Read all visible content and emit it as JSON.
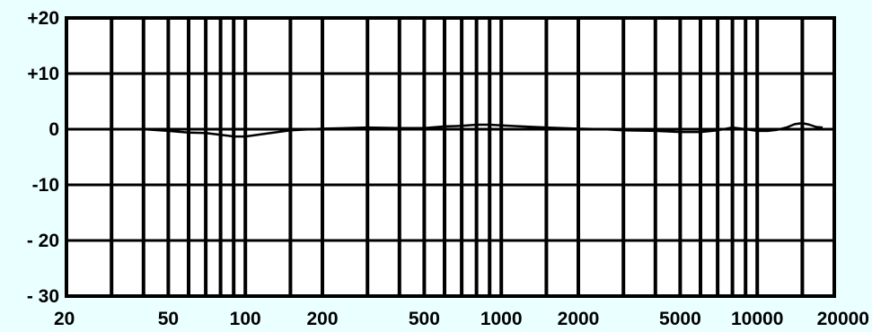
{
  "chart_data": {
    "type": "line",
    "title": "",
    "xlabel": "",
    "ylabel": "",
    "x_scale": "log",
    "xlim": [
      20,
      20000
    ],
    "ylim": [
      -30,
      20
    ],
    "grid": true,
    "colors": {
      "background": "#eaffff",
      "plot_area": "#ffffff",
      "grid": "#000000",
      "line": "#000000"
    },
    "y_ticks": [
      {
        "value": 20,
        "label": "+20"
      },
      {
        "value": 10,
        "label": "+10"
      },
      {
        "value": 0,
        "label": "0"
      },
      {
        "value": -10,
        "label": "-10"
      },
      {
        "value": -20,
        "label": "- 20"
      },
      {
        "value": -30,
        "label": "- 30"
      }
    ],
    "x_gridlines": [
      30,
      40,
      50,
      60,
      70,
      80,
      90,
      100,
      150,
      200,
      300,
      400,
      500,
      600,
      700,
      800,
      900,
      1000,
      1500,
      2000,
      3000,
      4000,
      5000,
      6000,
      7000,
      8000,
      9000,
      10000,
      15000
    ],
    "x_tick_labels": [
      {
        "value": 20,
        "label": "20"
      },
      {
        "value": 50,
        "label": "50"
      },
      {
        "value": 100,
        "label": "100"
      },
      {
        "value": 200,
        "label": "200"
      },
      {
        "value": 500,
        "label": "500"
      },
      {
        "value": 1000,
        "label": "1000"
      },
      {
        "value": 2000,
        "label": "2000"
      },
      {
        "value": 5000,
        "label": "5000"
      },
      {
        "value": 10000,
        "label": "10000"
      },
      {
        "value": 20000,
        "label": "20000"
      }
    ],
    "series": [
      {
        "x": [
          40,
          50,
          60,
          70,
          80,
          90,
          100,
          120,
          150,
          200,
          250,
          300,
          400,
          500,
          600,
          700,
          800,
          900,
          1000,
          1200,
          1500,
          2000,
          2500,
          3000,
          4000,
          5000,
          6000,
          7000,
          8000,
          9000,
          10000,
          11000,
          12000,
          13000,
          14000,
          15000,
          16000,
          17000,
          18000
        ],
        "values": [
          0,
          -0.3,
          -0.6,
          -0.7,
          -1.0,
          -1.3,
          -1.3,
          -0.8,
          -0.2,
          0.1,
          0.2,
          0.3,
          0.2,
          0.2,
          0.5,
          0.6,
          0.8,
          0.8,
          0.7,
          0.5,
          0.3,
          0.1,
          0.0,
          -0.2,
          -0.3,
          -0.5,
          -0.5,
          -0.2,
          0.3,
          0.0,
          -0.3,
          -0.3,
          -0.1,
          0.3,
          0.9,
          1.1,
          0.8,
          0.4,
          0.3
        ]
      }
    ]
  }
}
